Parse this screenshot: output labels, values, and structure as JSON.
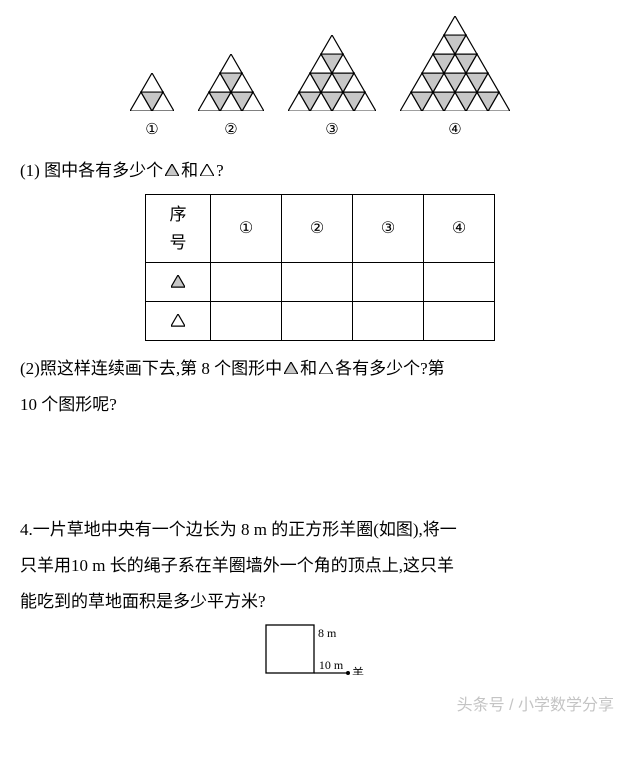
{
  "figures": {
    "labels": [
      "①",
      "②",
      "③",
      "④"
    ],
    "levels": [
      2,
      3,
      4,
      5
    ],
    "unit_side": 22,
    "stroke": "#000000",
    "stroke_width": 1.2,
    "shaded_fill": "#c7c7c7",
    "white_fill": "#ffffff"
  },
  "tri_icons": {
    "side": 14,
    "stroke": "#000000",
    "shaded_fill": "#c7c7c7",
    "white_fill": "#ffffff"
  },
  "q1": {
    "prefix": "(1)  图中各有多少个 ",
    "mid": "和 ",
    "suffix": "?"
  },
  "table": {
    "header0": "序号",
    "cols": [
      "①",
      "②",
      "③",
      "④"
    ]
  },
  "q2": {
    "prefix": "(2)照这样连续画下去,第 8 个图形中 ",
    "mid": "和 ",
    "suffix": "各有多少个?第",
    "line2": "10 个图形呢?"
  },
  "q4": {
    "line1": "4.一片草地中央有一个边长为 8 m 的正方形羊圈(如图),将一",
    "line2": "只羊用10 m 长的绳子系在羊圈墙外一个角的顶点上,这只羊",
    "line3": "能吃到的草地面积是多少平方米?"
  },
  "diagram": {
    "square_side": 48,
    "ext": 34,
    "label_top": "8 m",
    "label_bottom": "10 m",
    "label_right": "羊",
    "stroke": "#000000",
    "fontsize": 12
  },
  "watermark": "头条号 / 小学数学分享"
}
